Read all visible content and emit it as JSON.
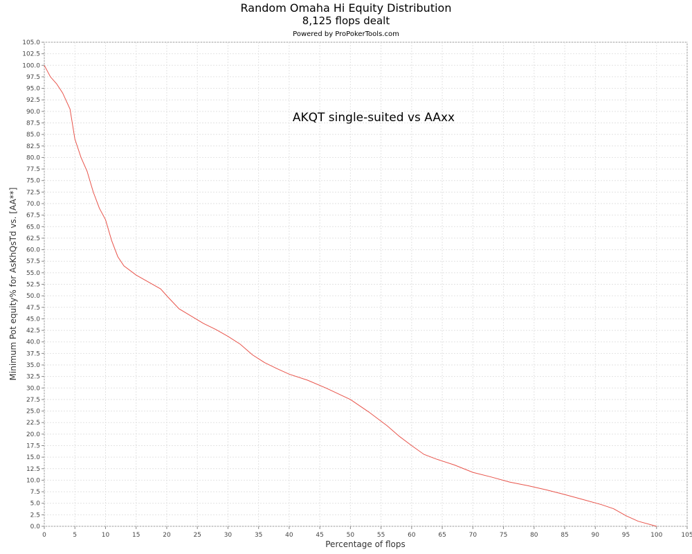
{
  "chart_data": {
    "type": "line",
    "title": "Random Omaha Hi Equity Distribution",
    "subtitle": "8,125 flops dealt",
    "credit": "Powered by ProPokerTools.com",
    "annotation": "AKQT single-suited vs AAxx",
    "xlabel": "Percentage of flops",
    "ylabel": "Minimum Pot equity% for AsKhQsTd vs. [AA**]",
    "xlim": [
      0,
      105
    ],
    "ylim": [
      0,
      105
    ],
    "x_ticks": [
      0,
      5,
      10,
      15,
      20,
      25,
      30,
      35,
      40,
      45,
      50,
      55,
      60,
      65,
      70,
      75,
      80,
      85,
      90,
      95,
      100,
      105
    ],
    "y_ticks": [
      0.0,
      2.5,
      5.0,
      7.5,
      10.0,
      12.5,
      15.0,
      17.5,
      20.0,
      22.5,
      25.0,
      27.5,
      30.0,
      32.5,
      35.0,
      37.5,
      40.0,
      42.5,
      45.0,
      47.5,
      50.0,
      52.5,
      55.0,
      57.5,
      60.0,
      62.5,
      65.0,
      67.5,
      70.0,
      72.5,
      75.0,
      77.5,
      80.0,
      82.5,
      85.0,
      87.5,
      90.0,
      92.5,
      95.0,
      97.5,
      100.0,
      102.5,
      105.0
    ],
    "grid": true,
    "line_color": "#e8534a",
    "series": [
      {
        "x": [
          0,
          1,
          2,
          3,
          4.2,
          5,
          6,
          7,
          8,
          9,
          10,
          11,
          12,
          13,
          15,
          17,
          19,
          20,
          22,
          24,
          26,
          28,
          30,
          32,
          34,
          36,
          38,
          40,
          43,
          46,
          50,
          53,
          56,
          58,
          60,
          62,
          64,
          67,
          70,
          73,
          76,
          79,
          82,
          85,
          88,
          91,
          93,
          95,
          97,
          100
        ],
        "y": [
          100,
          97.5,
          96,
          94,
          90.5,
          84,
          80,
          77,
          72.5,
          69,
          66.5,
          62,
          58.5,
          56.5,
          54.5,
          53,
          51.5,
          50,
          47.2,
          45.6,
          44,
          42.7,
          41.2,
          39.5,
          37.2,
          35.5,
          34.2,
          33,
          31.7,
          30,
          27.5,
          24.8,
          21.8,
          19.5,
          17.5,
          15.6,
          14.6,
          13.3,
          11.7,
          10.7,
          9.6,
          8.8,
          7.9,
          6.9,
          5.8,
          4.7,
          3.8,
          2.3,
          1.1,
          0
        ]
      }
    ]
  }
}
